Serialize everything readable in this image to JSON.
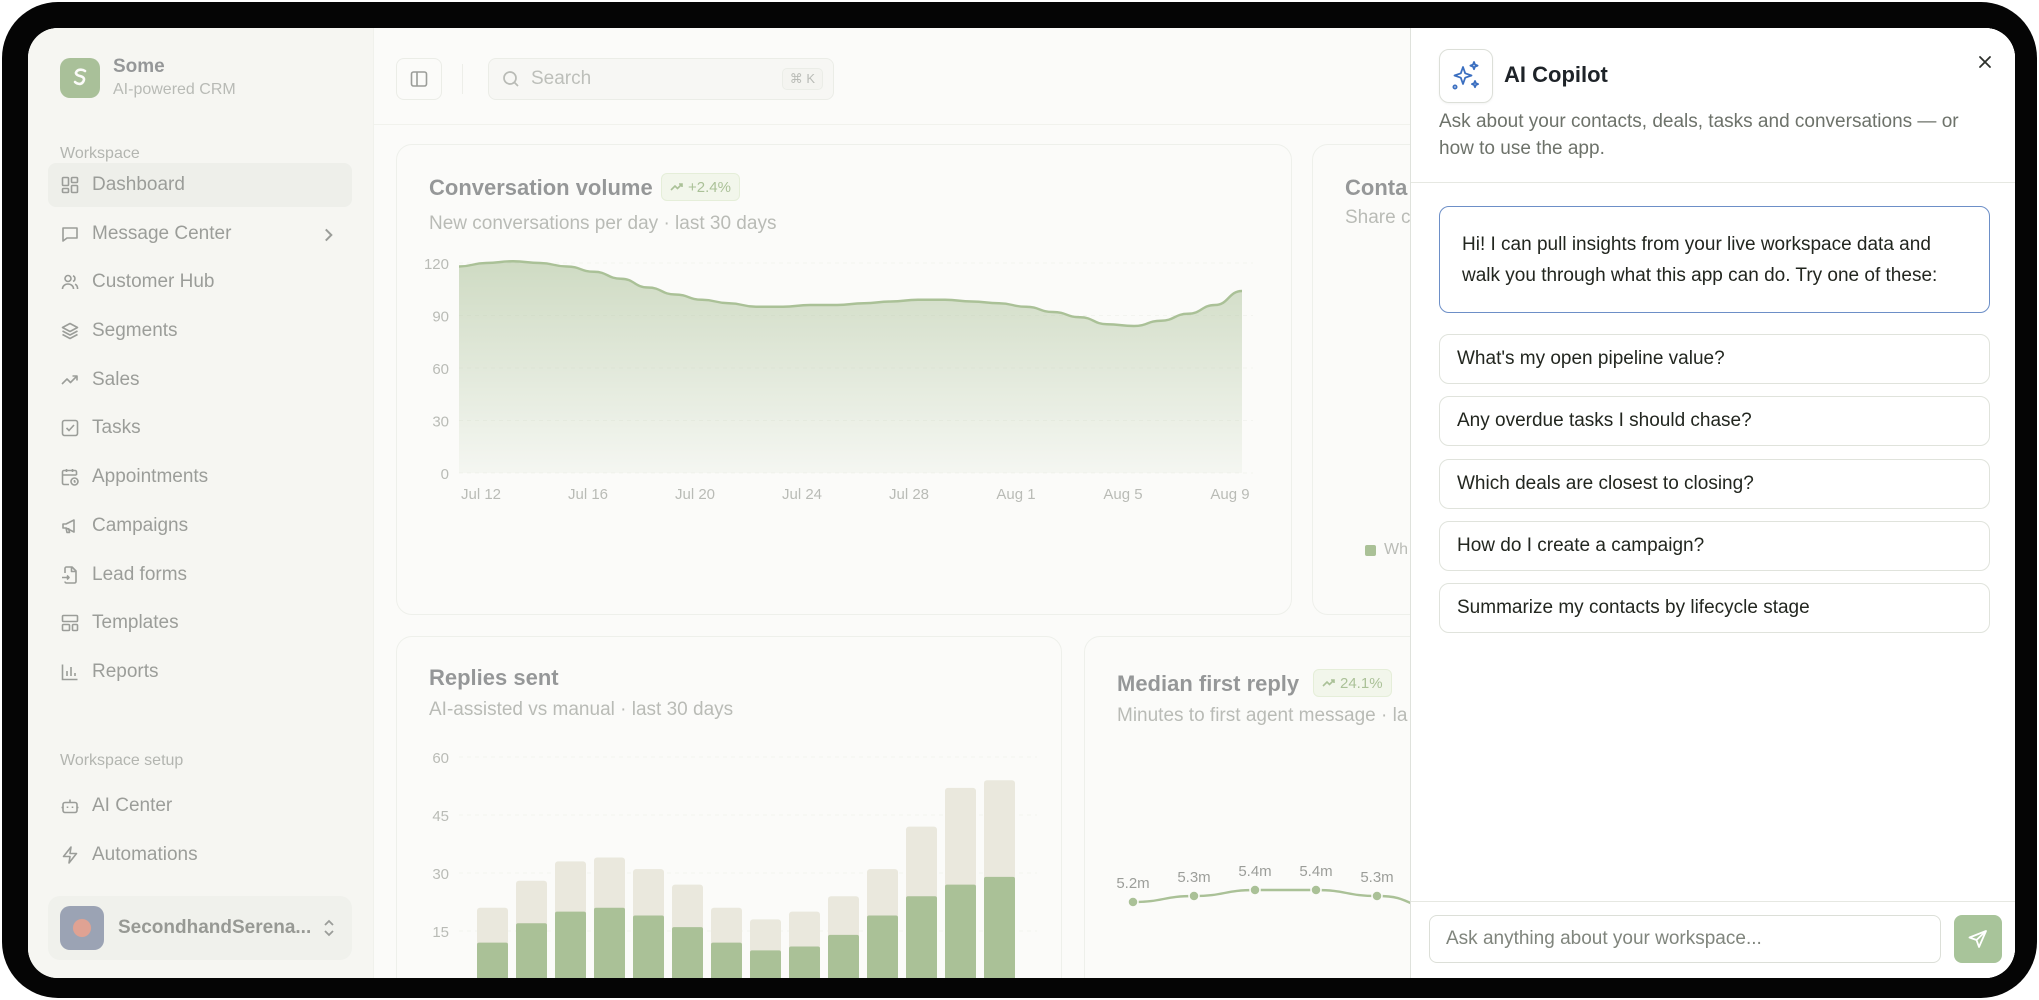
{
  "brand": {
    "name": "Some",
    "subtitle": "AI-powered CRM"
  },
  "sidebar": {
    "workspace_label": "Workspace",
    "items": [
      {
        "label": "Dashboard",
        "icon": "dashboard-icon",
        "active": true
      },
      {
        "label": "Message Center",
        "icon": "message-square-icon",
        "has_submenu": true
      },
      {
        "label": "Customer Hub",
        "icon": "users-icon"
      },
      {
        "label": "Segments",
        "icon": "layers-icon"
      },
      {
        "label": "Sales",
        "icon": "trending-up-icon"
      },
      {
        "label": "Tasks",
        "icon": "check-square-icon"
      },
      {
        "label": "Appointments",
        "icon": "calendar-clock-icon"
      },
      {
        "label": "Campaigns",
        "icon": "megaphone-icon"
      },
      {
        "label": "Lead forms",
        "icon": "file-input-icon"
      },
      {
        "label": "Templates",
        "icon": "layout-template-icon"
      },
      {
        "label": "Reports",
        "icon": "bar-chart-icon"
      }
    ],
    "setup_label": "Workspace setup",
    "setup_items": [
      {
        "label": "AI Center",
        "icon": "bot-icon"
      },
      {
        "label": "Automations",
        "icon": "zap-icon"
      }
    ],
    "user": {
      "name": "SecondhandSerena..."
    }
  },
  "topbar": {
    "search_placeholder": "Search",
    "search_shortcut": "⌘ K"
  },
  "cards": {
    "conversation_volume": {
      "title": "Conversation volume",
      "badge": "+2.4%",
      "subtitle": "New conversations per day · last 30 days"
    },
    "contacts": {
      "title": "Conta",
      "subtitle": "Share c",
      "legend_label": "Wh"
    },
    "replies_sent": {
      "title": "Replies sent",
      "subtitle": "AI-assisted vs manual · last 30 days"
    },
    "median_first_reply": {
      "title": "Median first reply",
      "badge": "24.1%",
      "subtitle": "Minutes to first agent message · la"
    }
  },
  "chart_data": [
    {
      "type": "area",
      "title": "Conversation volume",
      "ylim": [
        0,
        120
      ],
      "y_ticks": [
        0,
        30,
        60,
        90,
        120
      ],
      "x_tick_labels": [
        "Jul 12",
        "Jul 16",
        "Jul 20",
        "Jul 24",
        "Jul 28",
        "Aug 1",
        "Aug 5",
        "Aug 9"
      ],
      "series": [
        {
          "values": [
            118,
            120,
            121,
            120,
            118,
            115,
            111,
            106,
            102,
            99,
            97,
            95,
            95,
            96,
            96,
            97,
            98,
            99,
            99,
            98,
            97,
            95,
            92,
            89,
            85,
            84,
            87,
            91,
            96,
            104
          ]
        }
      ],
      "color": "#4d7e27"
    },
    {
      "type": "bar",
      "title": "Replies sent",
      "ylim": [
        0,
        60
      ],
      "y_ticks": [
        15,
        30,
        45,
        60
      ],
      "series": [
        {
          "stack": "total",
          "values": [
            21,
            28,
            33,
            34,
            31,
            27,
            21,
            18,
            20,
            24,
            31,
            42,
            52,
            54
          ]
        },
        {
          "stack": "base",
          "values": [
            12,
            17,
            20,
            21,
            19,
            16,
            12,
            10,
            11,
            14,
            19,
            24,
            27,
            29
          ]
        }
      ],
      "colors": [
        "#4d7e27",
        "#d9d5c0"
      ]
    },
    {
      "type": "line",
      "title": "Median first reply",
      "data_labels": [
        "5.2m",
        "5.3m",
        "5.4m",
        "5.4m",
        "5.3m"
      ],
      "values": [
        5.2,
        5.3,
        5.4,
        5.4,
        5.3
      ],
      "color": "#4d7e27"
    }
  ],
  "copilot": {
    "title": "AI Copilot",
    "description": "Ask about your contacts, deals, tasks and conversations — or how to use the app.",
    "greeting": "Hi! I can pull insights from your live workspace data and walk you through what this app can do. Try one of these:",
    "suggestions": [
      "What's my open pipeline value?",
      "Any overdue tasks I should chase?",
      "Which deals are closest to closing?",
      "How do I create a campaign?",
      "Summarize my contacts by lifecycle stage"
    ],
    "input_placeholder": "Ask anything about your workspace..."
  }
}
